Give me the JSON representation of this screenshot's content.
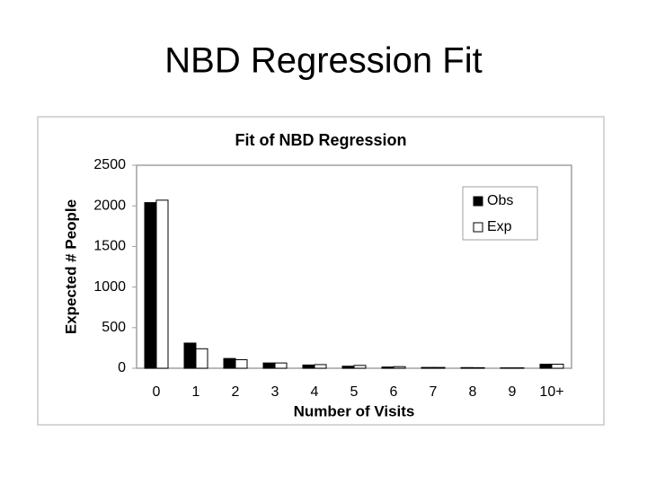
{
  "slide_title": "NBD Regression Fit",
  "chart_data": {
    "type": "bar",
    "title": "Fit of NBD Regression",
    "x_label": "Number of Visits",
    "y_label": "Expected # People",
    "categories": [
      "0",
      "1",
      "2",
      "3",
      "4",
      "5",
      "6",
      "7",
      "8",
      "9",
      "10+"
    ],
    "series": [
      {
        "name": "Obs",
        "color": "#000000",
        "values": [
          2040,
          310,
          120,
          65,
          40,
          25,
          15,
          10,
          8,
          5,
          50
        ]
      },
      {
        "name": "Exp",
        "color": "#ffffff",
        "values": [
          2070,
          240,
          105,
          65,
          45,
          35,
          20,
          10,
          7,
          5,
          50
        ]
      }
    ],
    "ylim": [
      0,
      2500
    ],
    "yticks": [
      0,
      500,
      1000,
      1500,
      2000,
      2500
    ],
    "grid": false,
    "legend": "upper right"
  }
}
